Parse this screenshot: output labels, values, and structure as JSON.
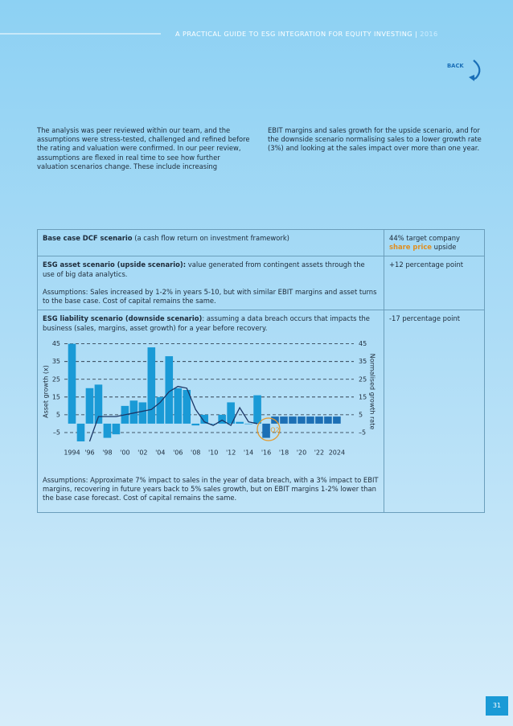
{
  "header": {
    "title": "A PRACTICAL GUIDE TO ESG INTEGRATION FOR EQUITY INVESTING",
    "separator": "|",
    "year": "2016",
    "back": "BACK"
  },
  "intro": [
    "The analysis was peer reviewed within our team, and the assumptions were stress-tested, challenged and refined before the rating and valuation were confirmed. In our peer review, assumptions are flexed in real time to see how further valuation scenarios change. These include increasing",
    "EBIT margins and sales growth for the upside scenario, and for the downside scenario normalising sales to a lower growth rate (3%) and looking at the sales impact over more than one year."
  ],
  "table": {
    "rows": [
      {
        "heading": "Base case DCF scenario",
        "text": " (a cash flow return on investment framework)",
        "result": [
          "44% target company ",
          "share price",
          " upside"
        ]
      },
      {
        "heading": "ESG asset scenario (upside scenario):",
        "text": " value generated from contingent assets through the use of big data analytics.",
        "assumptions": "Assumptions: Sales increased by 1-2% in years 5-10, but with similar EBIT margins and asset turns to the base case. Cost of capital remains the same.",
        "result": [
          "+12 percentage point"
        ]
      },
      {
        "heading": "ESG liability scenario (downside scenario)",
        "text": ": assuming a data breach occurs that impacts the business (sales, margins, asset growth) for a year before recovery.",
        "assumptions": "Assumptions: Approximate 7% impact to sales in the year of data breach, with a 3% impact to EBIT margins, recovering in future years back to 5% sales growth, but on EBIT margins 1-2% lower than the base case forecast. Cost of capital remains the same.",
        "result": [
          "-17 percentage point"
        ]
      }
    ]
  },
  "chart_data": {
    "type": "bar",
    "categories": [
      "1994",
      null,
      "'96",
      null,
      "'98",
      null,
      "'00",
      null,
      "'02",
      null,
      "'04",
      null,
      "'06",
      null,
      "'08",
      null,
      "'10",
      null,
      "'12",
      null,
      "'14",
      null,
      "'16",
      null,
      "'18",
      null,
      "'20",
      null,
      "'22",
      null,
      "2024"
    ],
    "series": [
      {
        "name": "Asset growth (x)",
        "colors": [
          "#1a9ad6",
          "#1a9ad6",
          "#1a9ad6",
          "#1a9ad6",
          "#1a9ad6",
          "#1a9ad6",
          "#1a9ad6",
          "#1a9ad6",
          "#1a9ad6",
          "#1a9ad6",
          "#1a9ad6",
          "#1a9ad6",
          "#1a9ad6",
          "#1a9ad6",
          "#1a9ad6",
          "#1a9ad6",
          "#1a9ad6",
          "#1a9ad6",
          "#1a9ad6",
          "#1a9ad6",
          "#1a9ad6",
          "#1a9ad6",
          "#1c6fb5",
          "#1c6fb5",
          "#1c6fb5",
          "#1c6fb5",
          "#1c6fb5",
          "#1c6fb5",
          "#1c6fb5",
          "#1c6fb5",
          "#1c6fb5"
        ],
        "values": [
          45,
          -10,
          20,
          22,
          -8,
          -6,
          10,
          13,
          12,
          43,
          15,
          38,
          20,
          19,
          -1,
          5,
          0,
          5,
          12,
          1,
          0,
          16,
          -8,
          4,
          4,
          4,
          4,
          4,
          4,
          4,
          4
        ]
      },
      {
        "name": "Normalised growth rate",
        "axis": "y2",
        "type": "line",
        "color": "#1b3666",
        "values": [
          null,
          null,
          -10,
          4,
          4,
          4,
          5,
          6,
          7,
          8,
          12,
          18,
          21,
          20,
          8,
          1,
          -1,
          2,
          -1,
          9,
          1,
          0,
          null,
          null,
          null,
          null,
          null,
          null,
          null,
          null,
          null
        ]
      }
    ],
    "ylabel": "Asset growth (x)",
    "y2label": "Normalised growth rate",
    "ylim": [
      -10,
      48
    ],
    "yticks": [
      45,
      35,
      25,
      15,
      5,
      {
        "value": -5,
        "label": "–5"
      }
    ],
    "y2lim": [
      -10,
      48
    ],
    "y2ticks": [
      45,
      35,
      25,
      15,
      5,
      {
        "value": -5,
        "label": "–5"
      }
    ],
    "grid": true,
    "annotation": "Q2",
    "annotation_color": "#e39a2d"
  },
  "page_number": "31"
}
